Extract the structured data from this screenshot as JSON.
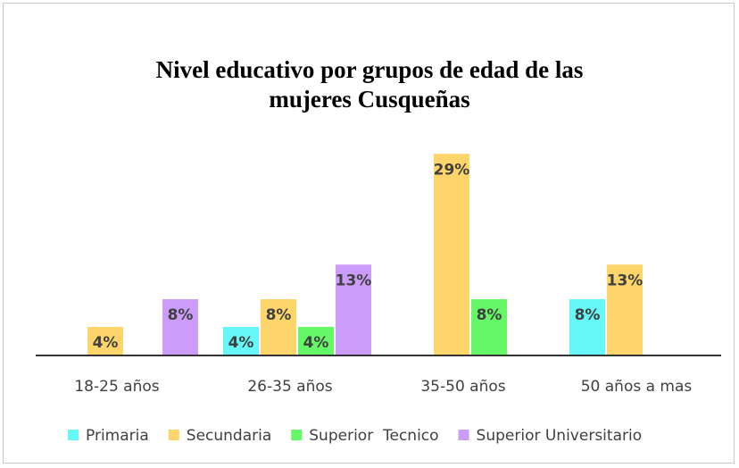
{
  "chart_data": {
    "type": "bar",
    "title": "Nivel educativo por grupos de edad de las mujeres Cusqueñas",
    "categories": [
      "18-25 años",
      "26-35 años",
      "35-50 años",
      "50 años a mas"
    ],
    "series": [
      {
        "name": "Primaria",
        "color": "#66f7f7",
        "values": [
          null,
          4,
          null,
          8
        ],
        "value_labels": [
          null,
          "4%",
          null,
          "8%"
        ]
      },
      {
        "name": "Secundaria",
        "color": "#fdd56b",
        "values": [
          4,
          8,
          29,
          13
        ],
        "value_labels": [
          "4%",
          "8%",
          "29%",
          "13%"
        ]
      },
      {
        "name": "Superior  Tecnico",
        "color": "#66f766",
        "values": [
          null,
          4,
          8,
          null
        ],
        "value_labels": [
          null,
          "4%",
          "8%",
          null
        ]
      },
      {
        "name": "Superior Universitario",
        "color": "#cc9cfa",
        "values": [
          8,
          13,
          null,
          null
        ],
        "value_labels": [
          "8%",
          "13%",
          null,
          null
        ]
      }
    ],
    "legend": "bottom"
  }
}
